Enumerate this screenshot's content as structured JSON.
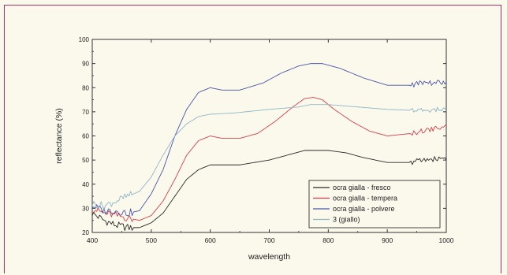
{
  "chart_data": {
    "type": "line",
    "title": "",
    "xlabel": "wavelength",
    "ylabel": "reflectance (%)",
    "xlim": [
      400,
      1000
    ],
    "ylim": [
      20,
      100
    ],
    "xticks": [
      400,
      500,
      600,
      700,
      800,
      900,
      1000
    ],
    "yticks": [
      20,
      30,
      40,
      50,
      60,
      70,
      80,
      90,
      100
    ],
    "grid": false,
    "legend": "bottom-right-inside",
    "series": [
      {
        "name": "ocra gialla - fresco",
        "color": "#2a2a2a",
        "noise_from": 940,
        "x": [
          400,
          420,
          440,
          460,
          480,
          500,
          520,
          540,
          560,
          580,
          600,
          620,
          650,
          700,
          730,
          760,
          780,
          800,
          830,
          860,
          900,
          940,
          960,
          1000
        ],
        "y": [
          28,
          25,
          23,
          22,
          22,
          24,
          28,
          35,
          42,
          46,
          48,
          48,
          48,
          50,
          52,
          54,
          54,
          54,
          53,
          51,
          49,
          49,
          50,
          51
        ]
      },
      {
        "name": "ocra gialla - tempera",
        "color": "#d8404a",
        "noise_from": 940,
        "x": [
          400,
          420,
          440,
          460,
          480,
          500,
          520,
          540,
          560,
          580,
          600,
          620,
          650,
          680,
          710,
          740,
          760,
          775,
          790,
          810,
          840,
          870,
          900,
          940,
          960,
          1000
        ],
        "y": [
          30,
          28,
          27,
          26,
          25,
          27,
          33,
          42,
          52,
          58,
          60,
          59,
          59,
          61,
          66,
          72,
          75.5,
          76,
          75,
          71,
          66,
          62,
          60,
          61,
          62,
          64
        ]
      },
      {
        "name": "ocra gialla - polvere",
        "color": "#4a56a8",
        "noise_from": 940,
        "x": [
          400,
          420,
          440,
          460,
          480,
          500,
          520,
          540,
          560,
          580,
          600,
          620,
          650,
          690,
          720,
          750,
          770,
          790,
          820,
          860,
          900,
          940,
          960,
          1000
        ],
        "y": [
          31,
          29,
          29,
          28,
          29,
          36,
          46,
          60,
          71,
          78,
          80,
          79,
          79,
          82,
          86,
          89,
          90,
          90,
          88,
          84,
          81,
          81,
          82,
          82
        ]
      },
      {
        "name": "3 (giallo)",
        "color": "#8fb8c8",
        "noise_from": 940,
        "x": [
          400,
          420,
          440,
          460,
          480,
          500,
          520,
          540,
          560,
          580,
          600,
          640,
          700,
          750,
          770,
          800,
          850,
          900,
          950,
          1000
        ],
        "y": [
          32,
          31,
          33,
          35,
          37,
          43,
          52,
          60,
          65,
          68,
          69,
          69.5,
          71,
          72,
          73,
          73,
          72,
          71,
          70.5,
          71
        ]
      }
    ]
  }
}
